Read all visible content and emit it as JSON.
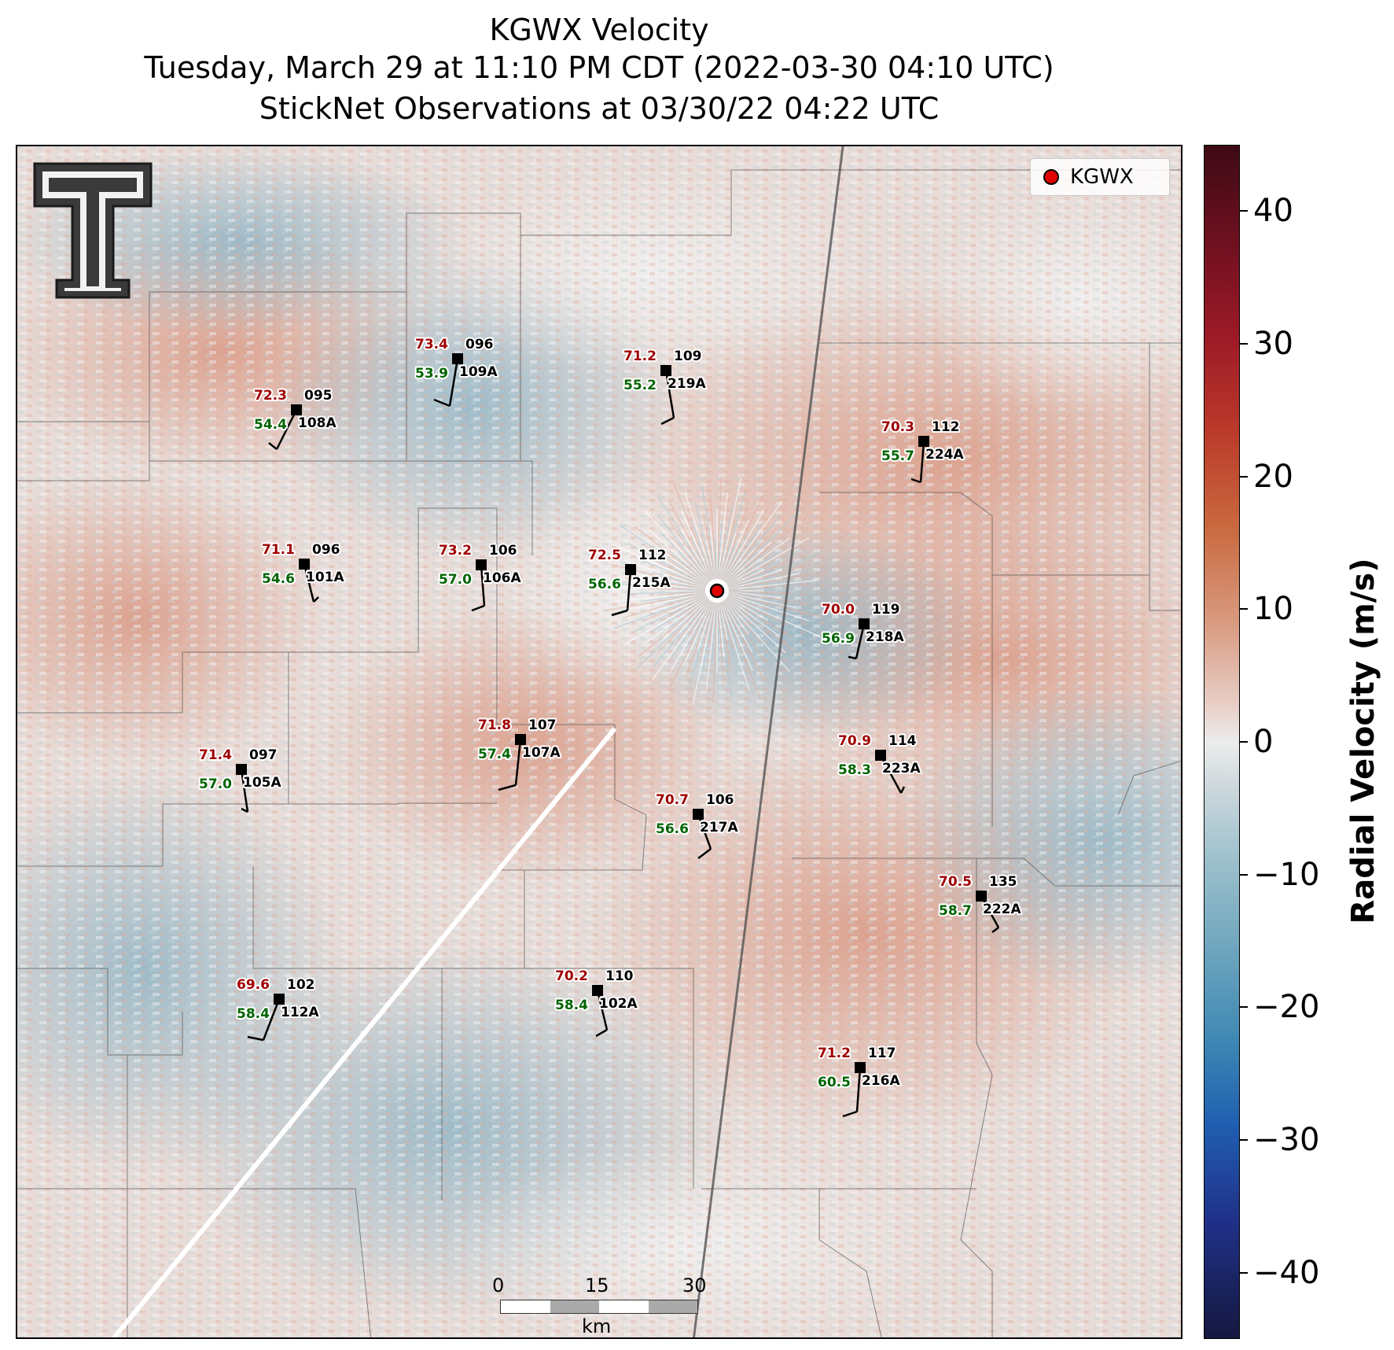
{
  "titles": {
    "line1": "KGWX Velocity",
    "line2": "Tuesday, March 29 at 11:10 PM CDT (2022-03-30 04:10 UTC)",
    "line3": "StickNet Observations at 03/30/22 04:22 UTC"
  },
  "legend": {
    "label": "KGWX"
  },
  "colorbar": {
    "label": "Radial Velocity (m/s)",
    "ticks": [
      "40",
      "30",
      "20",
      "10",
      "0",
      "−10",
      "−20",
      "−30",
      "−40"
    ],
    "range": [
      -45,
      45
    ],
    "colors": {
      "max": "#3d0a14",
      "zero": "#ececec",
      "min": "#15183f"
    }
  },
  "scalebar": {
    "ticks": [
      "0",
      "15",
      "30"
    ],
    "unit": "km"
  },
  "colors": {
    "temperature": "#a00000",
    "dewpoint": "#006400",
    "radar_marker": "#e00000"
  },
  "stations": [
    {
      "temp": "73.4",
      "dir": "096",
      "dew": "53.9",
      "id": "109A"
    },
    {
      "temp": "71.2",
      "dir": "109",
      "dew": "55.2",
      "id": "219A"
    },
    {
      "temp": "72.3",
      "dir": "095",
      "dew": "54.4",
      "id": "108A"
    },
    {
      "temp": "70.3",
      "dir": "112",
      "dew": "55.7",
      "id": "224A"
    },
    {
      "temp": "71.1",
      "dir": "096",
      "dew": "54.6",
      "id": "101A"
    },
    {
      "temp": "73.2",
      "dir": "106",
      "dew": "57.0",
      "id": "106A"
    },
    {
      "temp": "72.5",
      "dir": "112",
      "dew": "56.6",
      "id": "215A"
    },
    {
      "temp": "70.0",
      "dir": "119",
      "dew": "56.9",
      "id": "218A"
    },
    {
      "temp": "71.8",
      "dir": "107",
      "dew": "57.4",
      "id": "107A"
    },
    {
      "temp": "70.9",
      "dir": "114",
      "dew": "58.3",
      "id": "223A"
    },
    {
      "temp": "71.4",
      "dir": "097",
      "dew": "57.0",
      "id": "105A"
    },
    {
      "temp": "70.7",
      "dir": "106",
      "dew": "56.6",
      "id": "217A"
    },
    {
      "temp": "70.5",
      "dir": "135",
      "dew": "58.7",
      "id": "222A"
    },
    {
      "temp": "69.6",
      "dir": "102",
      "dew": "58.4",
      "id": "112A"
    },
    {
      "temp": "70.2",
      "dir": "110",
      "dew": "58.4",
      "id": "102A"
    },
    {
      "temp": "71.2",
      "dir": "117",
      "dew": "60.5",
      "id": "216A"
    }
  ]
}
